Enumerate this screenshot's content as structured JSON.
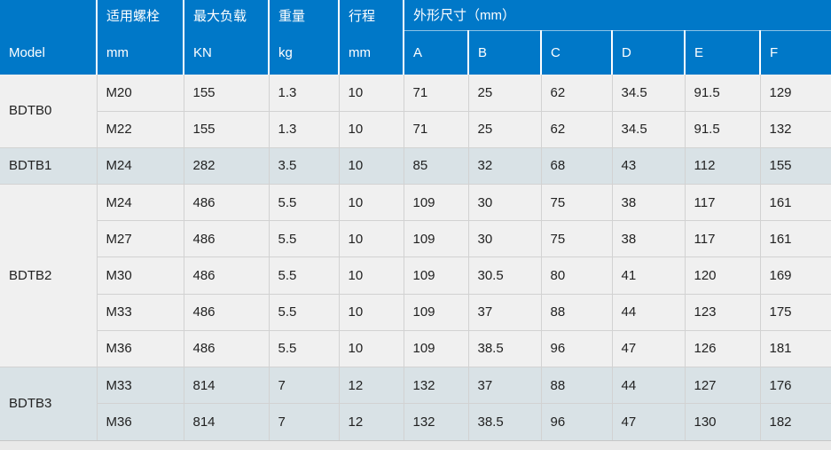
{
  "colors": {
    "header_bg": "#0078c8",
    "header_text": "#ffffff",
    "body_text": "#222222",
    "row_light": "#f0f0f0",
    "row_shaded": "#d9e2e6",
    "grid_line": "#d2d2d2",
    "bottom_bar": "#e9e9e9",
    "bottom_bar_line": "#c6c6c6"
  },
  "table": {
    "header": {
      "model_label": "Model",
      "columns": [
        {
          "title": "适用螺栓",
          "unit": "mm"
        },
        {
          "title": "最大负载",
          "unit": "KN"
        },
        {
          "title": "重量",
          "unit": "kg"
        },
        {
          "title": "行程",
          "unit": "mm"
        }
      ],
      "dimensions": {
        "title": "外形尺寸（mm）",
        "sub_columns": [
          "A",
          "B",
          "C",
          "D",
          "E",
          "F"
        ]
      }
    },
    "groups": [
      {
        "model": "BDTB0",
        "shade": "light",
        "rows": [
          {
            "bolt": "M20",
            "load": "155",
            "weight": "1.3",
            "stroke": "10",
            "A": "71",
            "B": "25",
            "C": "62",
            "D": "34.5",
            "E": "91.5",
            "F": "129"
          },
          {
            "bolt": "M22",
            "load": "155",
            "weight": "1.3",
            "stroke": "10",
            "A": "71",
            "B": "25",
            "C": "62",
            "D": "34.5",
            "E": "91.5",
            "F": "132"
          }
        ]
      },
      {
        "model": "BDTB1",
        "shade": "shaded",
        "rows": [
          {
            "bolt": "M24",
            "load": "282",
            "weight": "3.5",
            "stroke": "10",
            "A": "85",
            "B": "32",
            "C": "68",
            "D": "43",
            "E": "112",
            "F": "155"
          }
        ]
      },
      {
        "model": "BDTB2",
        "shade": "light",
        "rows": [
          {
            "bolt": "M24",
            "load": "486",
            "weight": "5.5",
            "stroke": "10",
            "A": "109",
            "B": "30",
            "C": "75",
            "D": "38",
            "E": "117",
            "F": "161"
          },
          {
            "bolt": "M27",
            "load": "486",
            "weight": "5.5",
            "stroke": "10",
            "A": "109",
            "B": "30",
            "C": "75",
            "D": "38",
            "E": "117",
            "F": "161"
          },
          {
            "bolt": "M30",
            "load": "486",
            "weight": "5.5",
            "stroke": "10",
            "A": "109",
            "B": "30.5",
            "C": "80",
            "D": "41",
            "E": "120",
            "F": "169"
          },
          {
            "bolt": "M33",
            "load": "486",
            "weight": "5.5",
            "stroke": "10",
            "A": "109",
            "B": "37",
            "C": "88",
            "D": "44",
            "E": "123",
            "F": "175"
          },
          {
            "bolt": "M36",
            "load": "486",
            "weight": "5.5",
            "stroke": "10",
            "A": "109",
            "B": "38.5",
            "C": "96",
            "D": "47",
            "E": "126",
            "F": "181"
          }
        ]
      },
      {
        "model": "BDTB3",
        "shade": "shaded",
        "rows": [
          {
            "bolt": "M33",
            "load": "814",
            "weight": "7",
            "stroke": "12",
            "A": "132",
            "B": "37",
            "C": "88",
            "D": "44",
            "E": "127",
            "F": "176"
          },
          {
            "bolt": "M36",
            "load": "814",
            "weight": "7",
            "stroke": "12",
            "A": "132",
            "B": "38.5",
            "C": "96",
            "D": "47",
            "E": "130",
            "F": "182"
          }
        ]
      }
    ]
  }
}
